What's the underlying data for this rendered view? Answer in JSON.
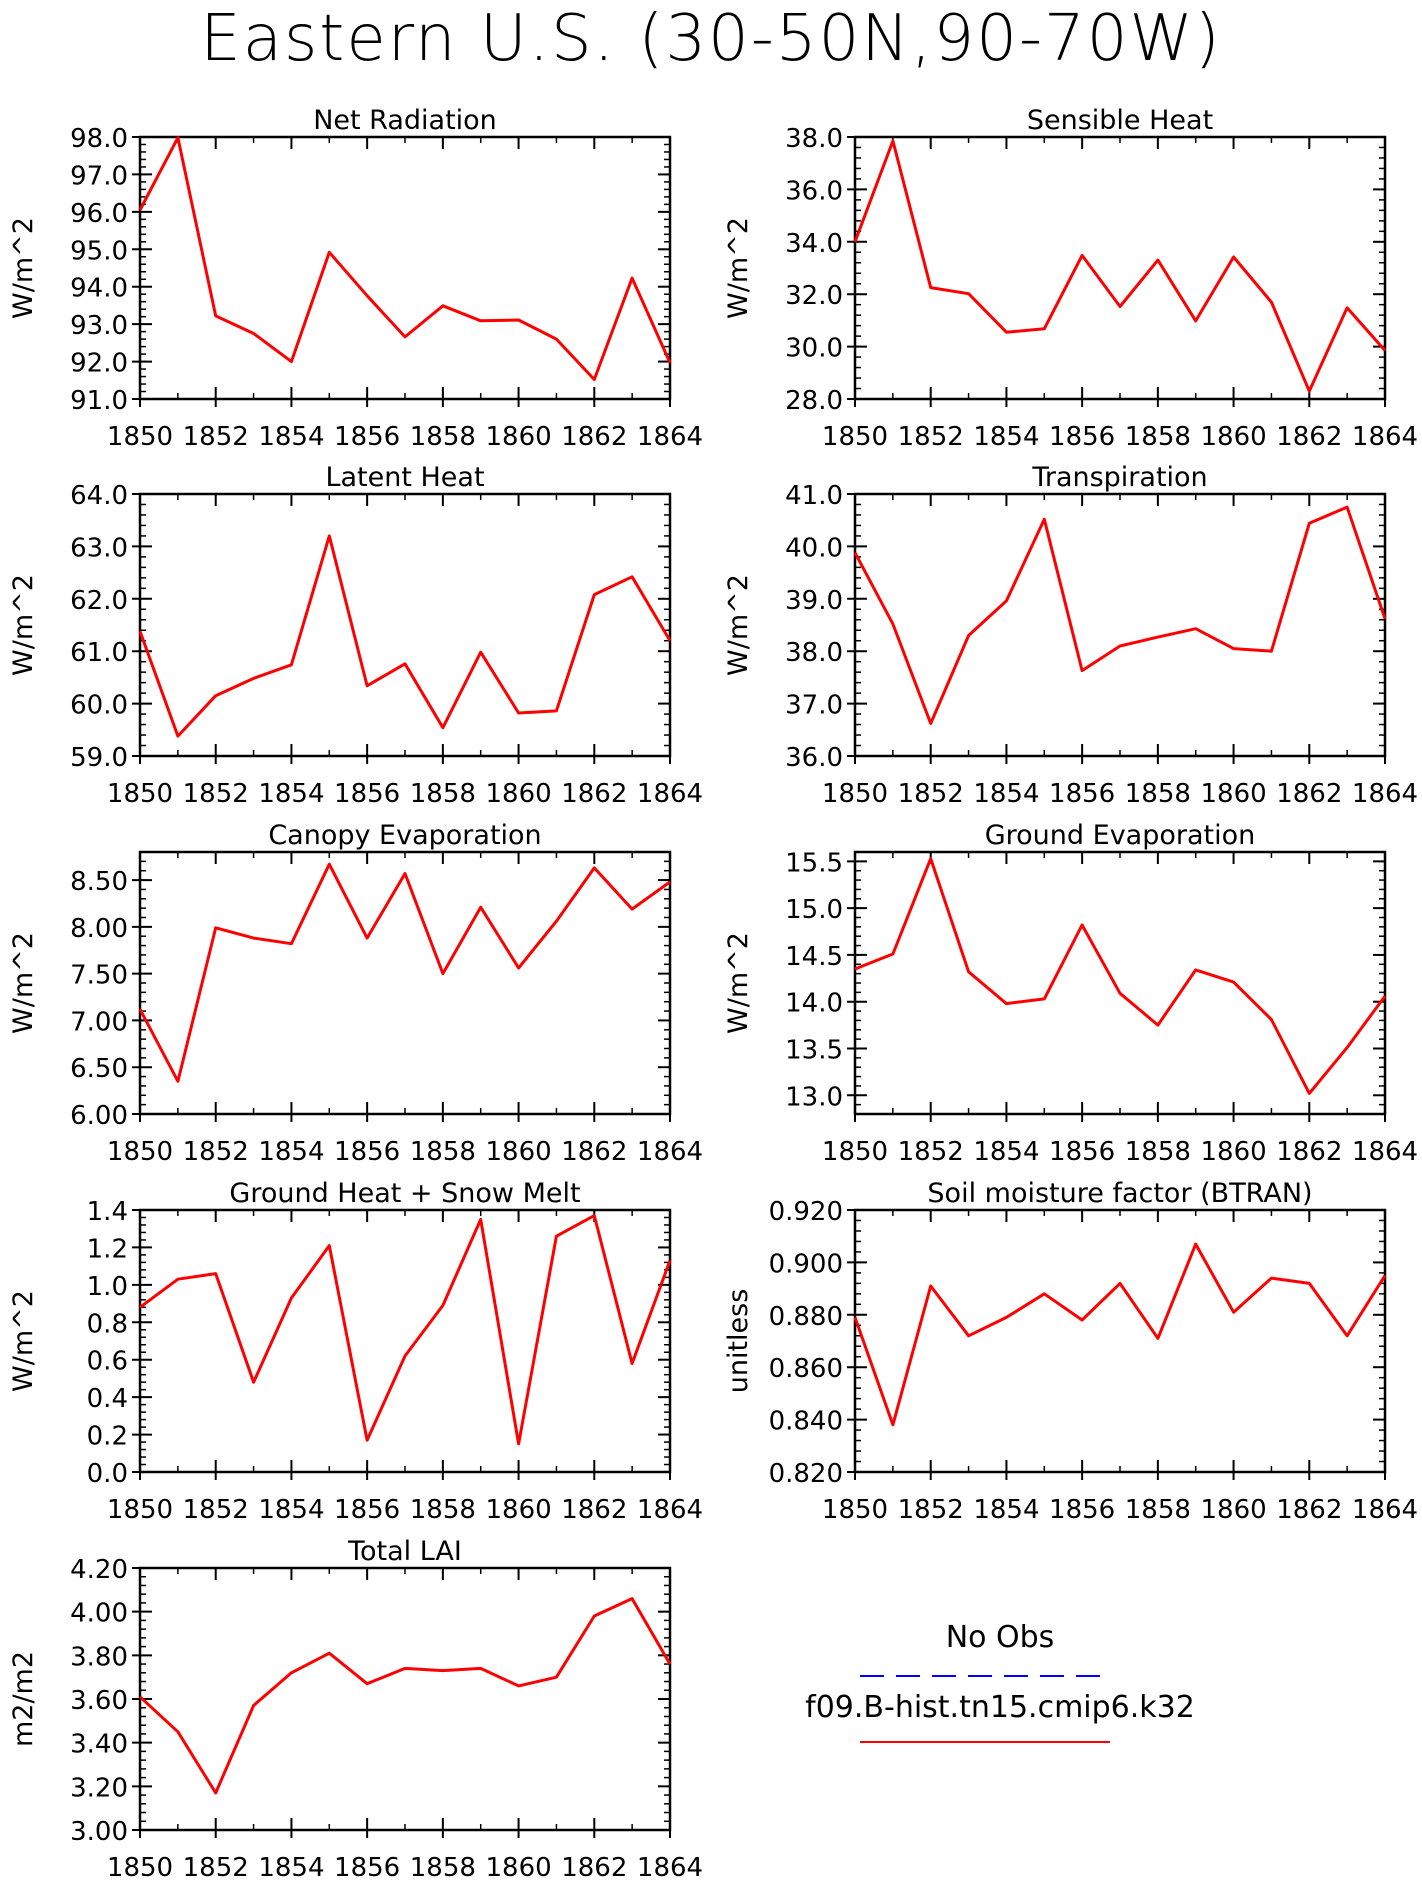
{
  "title": "Eastern U.S. (30-50N,90-70W)",
  "colors": {
    "model_line": "#ff0000",
    "obs_line": "#0000ff",
    "axes": "#000000"
  },
  "legend": {
    "obs_label": "No Obs",
    "model_label": "f09.B-hist.tn15.cmip6.k32"
  },
  "chart_data": [
    {
      "type": "line",
      "title": "Net Radiation",
      "ylabel": "W/m^2",
      "x": [
        1850,
        1851,
        1852,
        1853,
        1854,
        1855,
        1856,
        1857,
        1858,
        1859,
        1860,
        1861,
        1862,
        1863,
        1864
      ],
      "y": [
        96.05,
        97.98,
        93.22,
        92.75,
        92.0,
        94.92,
        93.76,
        92.66,
        93.49,
        93.09,
        93.11,
        92.6,
        91.52,
        94.23,
        91.97
      ],
      "xlim": [
        1850,
        1864
      ],
      "ylim": [
        91.0,
        98.0
      ],
      "xticks": [
        "1850",
        "1852",
        "1854",
        "1856",
        "1858",
        "1860",
        "1862",
        "1864"
      ],
      "yticks": [
        "91.0",
        "92.0",
        "93.0",
        "94.0",
        "95.0",
        "96.0",
        "97.0",
        "98.0"
      ],
      "ytick_values": [
        91,
        92,
        93,
        94,
        95,
        96,
        97,
        98
      ]
    },
    {
      "type": "line",
      "title": "Sensible Heat",
      "ylabel": "W/m^2",
      "x": [
        1850,
        1851,
        1852,
        1853,
        1854,
        1855,
        1856,
        1857,
        1858,
        1859,
        1860,
        1861,
        1862,
        1863,
        1864
      ],
      "y": [
        34.0,
        37.85,
        32.25,
        32.02,
        30.55,
        30.68,
        33.48,
        31.53,
        33.3,
        30.98,
        33.42,
        31.7,
        28.3,
        31.48,
        29.85
      ],
      "xlim": [
        1850,
        1864
      ],
      "ylim": [
        28.0,
        38.0
      ],
      "xticks": [
        "1850",
        "1852",
        "1854",
        "1856",
        "1858",
        "1860",
        "1862",
        "1864"
      ],
      "yticks": [
        "28.0",
        "30.0",
        "32.0",
        "34.0",
        "36.0",
        "38.0"
      ],
      "ytick_values": [
        28,
        30,
        32,
        34,
        36,
        38
      ]
    },
    {
      "type": "line",
      "title": "Latent Heat",
      "ylabel": "W/m^2",
      "x": [
        1850,
        1851,
        1852,
        1853,
        1854,
        1855,
        1856,
        1857,
        1858,
        1859,
        1860,
        1861,
        1862,
        1863,
        1864
      ],
      "y": [
        61.38,
        59.38,
        60.15,
        60.48,
        60.74,
        63.2,
        60.34,
        60.76,
        59.54,
        60.98,
        59.82,
        59.86,
        62.08,
        62.42,
        61.2
      ],
      "xlim": [
        1850,
        1864
      ],
      "ylim": [
        59.0,
        64.0
      ],
      "xticks": [
        "1850",
        "1852",
        "1854",
        "1856",
        "1858",
        "1860",
        "1862",
        "1864"
      ],
      "yticks": [
        "59.0",
        "60.0",
        "61.0",
        "62.0",
        "63.0",
        "64.0"
      ],
      "ytick_values": [
        59,
        60,
        61,
        62,
        63,
        64
      ]
    },
    {
      "type": "line",
      "title": "Transpiration",
      "ylabel": "W/m^2",
      "x": [
        1850,
        1851,
        1852,
        1853,
        1854,
        1855,
        1856,
        1857,
        1858,
        1859,
        1860,
        1861,
        1862,
        1863,
        1864
      ],
      "y": [
        39.88,
        38.52,
        36.62,
        38.3,
        38.96,
        40.52,
        37.63,
        38.1,
        38.27,
        38.43,
        38.05,
        38.0,
        40.44,
        40.75,
        38.62
      ],
      "xlim": [
        1850,
        1864
      ],
      "ylim": [
        36.0,
        41.0
      ],
      "xticks": [
        "1850",
        "1852",
        "1854",
        "1856",
        "1858",
        "1860",
        "1862",
        "1864"
      ],
      "yticks": [
        "36.0",
        "37.0",
        "38.0",
        "39.0",
        "40.0",
        "41.0"
      ],
      "ytick_values": [
        36,
        37,
        38,
        39,
        40,
        41
      ]
    },
    {
      "type": "line",
      "title": "Canopy Evaporation",
      "ylabel": "W/m^2",
      "x": [
        1850,
        1851,
        1852,
        1853,
        1854,
        1855,
        1856,
        1857,
        1858,
        1859,
        1860,
        1861,
        1862,
        1863,
        1864
      ],
      "y": [
        7.12,
        6.35,
        7.99,
        7.88,
        7.82,
        8.67,
        7.88,
        8.57,
        7.5,
        8.21,
        7.56,
        8.06,
        8.63,
        8.19,
        8.48
      ],
      "xlim": [
        1850,
        1864
      ],
      "ylim": [
        6.0,
        8.8
      ],
      "xticks": [
        "1850",
        "1852",
        "1854",
        "1856",
        "1858",
        "1860",
        "1862",
        "1864"
      ],
      "yticks": [
        "6.00",
        "6.50",
        "7.00",
        "7.50",
        "8.00",
        "8.50"
      ],
      "ytick_values": [
        6.0,
        6.5,
        7.0,
        7.5,
        8.0,
        8.5
      ]
    },
    {
      "type": "line",
      "title": "Ground Evaporation",
      "ylabel": "W/m^2",
      "x": [
        1850,
        1851,
        1852,
        1853,
        1854,
        1855,
        1856,
        1857,
        1858,
        1859,
        1860,
        1861,
        1862,
        1863,
        1864
      ],
      "y": [
        14.35,
        14.51,
        15.53,
        14.32,
        13.98,
        14.03,
        14.82,
        14.09,
        13.75,
        14.34,
        14.21,
        13.81,
        13.02,
        13.51,
        14.06
      ],
      "xlim": [
        1850,
        1864
      ],
      "ylim": [
        12.8,
        15.6
      ],
      "xticks": [
        "1850",
        "1852",
        "1854",
        "1856",
        "1858",
        "1860",
        "1862",
        "1864"
      ],
      "yticks": [
        "13.0",
        "13.5",
        "14.0",
        "14.5",
        "15.0",
        "15.5"
      ],
      "ytick_values": [
        13.0,
        13.5,
        14.0,
        14.5,
        15.0,
        15.5
      ]
    },
    {
      "type": "line",
      "title": "Ground Heat + Snow Melt",
      "ylabel": "W/m^2",
      "x": [
        1850,
        1851,
        1852,
        1853,
        1854,
        1855,
        1856,
        1857,
        1858,
        1859,
        1860,
        1861,
        1862,
        1863,
        1864
      ],
      "y": [
        0.88,
        1.03,
        1.06,
        0.48,
        0.93,
        1.21,
        0.17,
        0.62,
        0.89,
        1.35,
        0.15,
        1.26,
        1.37,
        0.58,
        1.13
      ],
      "xlim": [
        1850,
        1864
      ],
      "ylim": [
        0.0,
        1.4
      ],
      "xticks": [
        "1850",
        "1852",
        "1854",
        "1856",
        "1858",
        "1860",
        "1862",
        "1864"
      ],
      "yticks": [
        "0.0",
        "0.2",
        "0.4",
        "0.6",
        "0.8",
        "1.0",
        "1.2",
        "1.4"
      ],
      "ytick_values": [
        0.0,
        0.2,
        0.4,
        0.6,
        0.8,
        1.0,
        1.2,
        1.4
      ]
    },
    {
      "type": "line",
      "title": "Soil moisture factor (BTRAN)",
      "ylabel": "unitless",
      "x": [
        1850,
        1851,
        1852,
        1853,
        1854,
        1855,
        1856,
        1857,
        1858,
        1859,
        1860,
        1861,
        1862,
        1863,
        1864
      ],
      "y": [
        0.879,
        0.838,
        0.891,
        0.872,
        0.879,
        0.888,
        0.878,
        0.892,
        0.871,
        0.907,
        0.881,
        0.894,
        0.892,
        0.872,
        0.895
      ],
      "xlim": [
        1850,
        1864
      ],
      "ylim": [
        0.82,
        0.92
      ],
      "xticks": [
        "1850",
        "1852",
        "1854",
        "1856",
        "1858",
        "1860",
        "1862",
        "1864"
      ],
      "yticks": [
        "0.820",
        "0.840",
        "0.860",
        "0.880",
        "0.900",
        "0.920"
      ],
      "ytick_values": [
        0.82,
        0.84,
        0.86,
        0.88,
        0.9,
        0.92
      ]
    },
    {
      "type": "line",
      "title": "Total LAI",
      "ylabel": "m2/m2",
      "x": [
        1850,
        1851,
        1852,
        1853,
        1854,
        1855,
        1856,
        1857,
        1858,
        1859,
        1860,
        1861,
        1862,
        1863,
        1864
      ],
      "y": [
        3.61,
        3.45,
        3.17,
        3.57,
        3.72,
        3.81,
        3.67,
        3.74,
        3.73,
        3.74,
        3.66,
        3.7,
        3.98,
        4.06,
        3.76
      ],
      "xlim": [
        1850,
        1864
      ],
      "ylim": [
        3.0,
        4.2
      ],
      "xticks": [
        "1850",
        "1852",
        "1854",
        "1856",
        "1858",
        "1860",
        "1862",
        "1864"
      ],
      "yticks": [
        "3.00",
        "3.20",
        "3.40",
        "3.60",
        "3.80",
        "4.00",
        "4.20"
      ],
      "ytick_values": [
        3.0,
        3.2,
        3.4,
        3.6,
        3.8,
        4.0,
        4.2
      ]
    }
  ]
}
